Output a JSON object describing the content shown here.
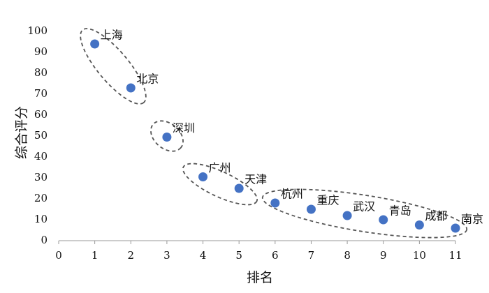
{
  "chart_data": {
    "type": "scatter",
    "x_label": "排名",
    "y_label": "综合评分",
    "labels": [
      "上海",
      "北京",
      "深圳",
      "广州",
      "天津",
      "杭州",
      "重庆",
      "武汉",
      "青岛",
      "成都",
      "南京"
    ],
    "x": [
      1,
      2,
      3,
      4,
      5,
      6,
      7,
      8,
      9,
      10,
      11
    ],
    "values": [
      94,
      73,
      49.5,
      30.5,
      25,
      18,
      15,
      12,
      10,
      7.5,
      6
    ],
    "color": "#4472c4",
    "xlim": [
      0,
      11
    ],
    "xticks": [
      0,
      1,
      2,
      3,
      4,
      5,
      6,
      7,
      8,
      9,
      10,
      11
    ],
    "ylim": [
      0,
      100
    ],
    "yticks": [
      0,
      10,
      20,
      30,
      40,
      50,
      60,
      70,
      80,
      90,
      100
    ]
  }
}
